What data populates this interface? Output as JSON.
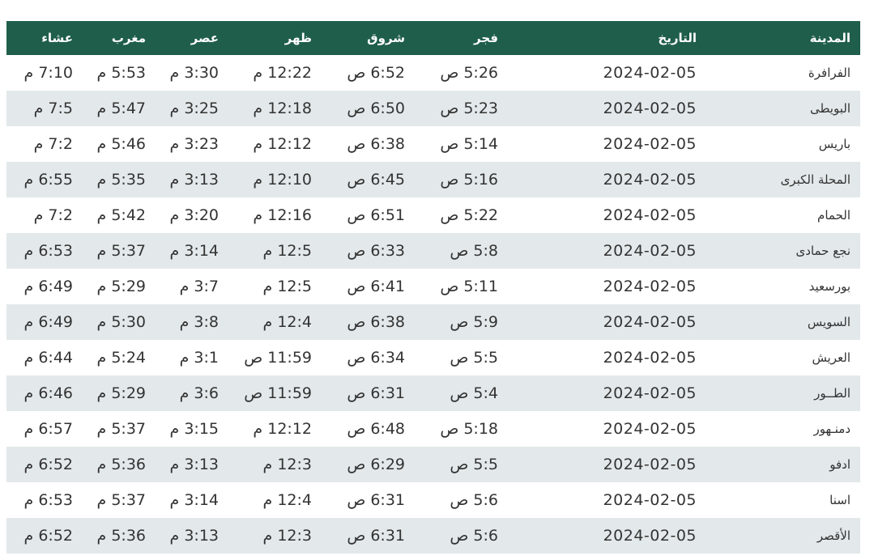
{
  "table": {
    "headers": [
      "المدينة",
      "التاريخ",
      "فجر",
      "شروق",
      "ظهر",
      "عصر",
      "مغرب",
      "عشاء"
    ],
    "rows": [
      [
        "الفرافرة",
        "2024-02-05",
        "5:26 ص",
        "6:52 ص",
        "12:22 م",
        "3:30 م",
        "5:53 م",
        "7:10 م"
      ],
      [
        "البويطى",
        "2024-02-05",
        "5:23 ص",
        "6:50 ص",
        "12:18 م",
        "3:25 م",
        "5:47 م",
        "7:5 م"
      ],
      [
        "باريس",
        "2024-02-05",
        "5:14 ص",
        "6:38 ص",
        "12:12 م",
        "3:23 م",
        "5:46 م",
        "7:2 م"
      ],
      [
        "المحلة الكبرى",
        "2024-02-05",
        "5:16 ص",
        "6:45 ص",
        "12:10 م",
        "3:13 م",
        "5:35 م",
        "6:55 م"
      ],
      [
        "الحمام",
        "2024-02-05",
        "5:22 ص",
        "6:51 ص",
        "12:16 م",
        "3:20 م",
        "5:42 م",
        "7:2 م"
      ],
      [
        "نجع حمادى",
        "2024-02-05",
        "5:8 ص",
        "6:33 ص",
        "12:5 م",
        "3:14 م",
        "5:37 م",
        "6:53 م"
      ],
      [
        "بورسعيد",
        "2024-02-05",
        "5:11 ص",
        "6:41 ص",
        "12:5 م",
        "3:7 م",
        "5:29 م",
        "6:49 م"
      ],
      [
        "السويس",
        "2024-02-05",
        "5:9 ص",
        "6:38 ص",
        "12:4 م",
        "3:8 م",
        "5:30 م",
        "6:49 م"
      ],
      [
        "العريش",
        "2024-02-05",
        "5:5 ص",
        "6:34 ص",
        "11:59 ص",
        "3:1 م",
        "5:24 م",
        "6:44 م"
      ],
      [
        "الطــور",
        "2024-02-05",
        "5:4 ص",
        "6:31 ص",
        "11:59 ص",
        "3:6 م",
        "5:29 م",
        "6:46 م"
      ],
      [
        "دمنـهور",
        "2024-02-05",
        "5:18 ص",
        "6:48 ص",
        "12:12 م",
        "3:15 م",
        "5:37 م",
        "6:57 م"
      ],
      [
        "ادفو",
        "2024-02-05",
        "5:5 ص",
        "6:29 ص",
        "12:3 م",
        "3:13 م",
        "5:36 م",
        "6:52 م"
      ],
      [
        "اسنا",
        "2024-02-05",
        "5:6 ص",
        "6:31 ص",
        "12:4 م",
        "3:14 م",
        "5:37 م",
        "6:53 م"
      ],
      [
        "الأقصر",
        "2024-02-05",
        "5:6 ص",
        "6:31 ص",
        "12:3 م",
        "3:13 م",
        "5:36 م",
        "6:52 م"
      ]
    ]
  }
}
